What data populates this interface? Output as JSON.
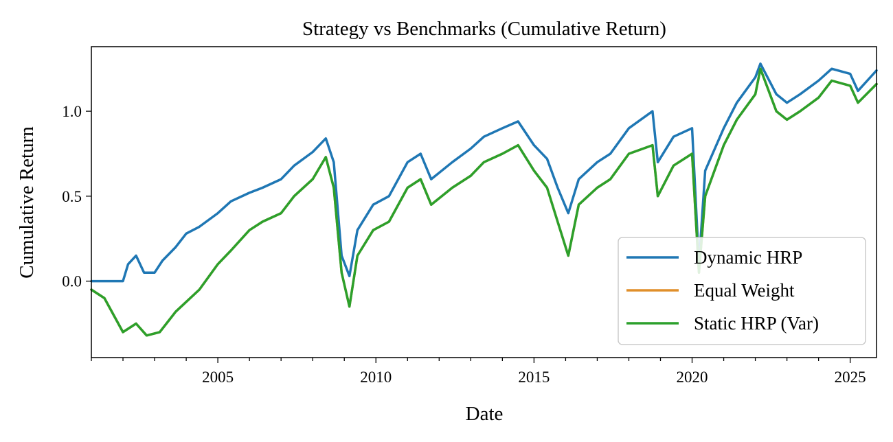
{
  "chart_data": {
    "type": "line",
    "title": "Strategy vs Benchmarks (Cumulative Return)",
    "xlabel": "Date",
    "ylabel": "Cumulative Return",
    "xlim": [
      "2001-01-01",
      "2025-11-01"
    ],
    "ylim": [
      -0.45,
      1.38
    ],
    "x_ticks": [
      "2005",
      "2010",
      "2015",
      "2020",
      "2025"
    ],
    "y_ticks": [
      "0.0",
      "0.5",
      "1.0"
    ],
    "y_tick_values": [
      0.0,
      0.5,
      1.0
    ],
    "grid": false,
    "legend_position": "lower-right",
    "series": [
      {
        "name": "Dynamic HRP",
        "color": "#1f77b4",
        "points": [
          [
            "2001-01-01",
            0.0
          ],
          [
            "2002-01-01",
            0.0
          ],
          [
            "2002-03-01",
            0.1
          ],
          [
            "2002-06-01",
            0.15
          ],
          [
            "2002-09-01",
            0.05
          ],
          [
            "2003-01-01",
            0.05
          ],
          [
            "2003-04-01",
            0.12
          ],
          [
            "2003-09-01",
            0.2
          ],
          [
            "2004-01-01",
            0.28
          ],
          [
            "2004-06-01",
            0.32
          ],
          [
            "2005-01-01",
            0.4
          ],
          [
            "2005-06-01",
            0.47
          ],
          [
            "2006-01-01",
            0.52
          ],
          [
            "2006-06-01",
            0.55
          ],
          [
            "2007-01-01",
            0.6
          ],
          [
            "2007-06-01",
            0.68
          ],
          [
            "2008-01-01",
            0.76
          ],
          [
            "2008-06-01",
            0.84
          ],
          [
            "2008-09-01",
            0.7
          ],
          [
            "2008-12-01",
            0.15
          ],
          [
            "2009-03-01",
            0.03
          ],
          [
            "2009-06-01",
            0.3
          ],
          [
            "2009-12-01",
            0.45
          ],
          [
            "2010-06-01",
            0.5
          ],
          [
            "2011-01-01",
            0.7
          ],
          [
            "2011-06-01",
            0.75
          ],
          [
            "2011-10-01",
            0.6
          ],
          [
            "2012-06-01",
            0.7
          ],
          [
            "2013-01-01",
            0.78
          ],
          [
            "2013-06-01",
            0.85
          ],
          [
            "2014-01-01",
            0.9
          ],
          [
            "2014-07-01",
            0.94
          ],
          [
            "2015-01-01",
            0.8
          ],
          [
            "2015-06-01",
            0.72
          ],
          [
            "2015-10-01",
            0.55
          ],
          [
            "2016-02-01",
            0.4
          ],
          [
            "2016-06-01",
            0.6
          ],
          [
            "2017-01-01",
            0.7
          ],
          [
            "2017-06-01",
            0.75
          ],
          [
            "2018-01-01",
            0.9
          ],
          [
            "2018-10-01",
            1.0
          ],
          [
            "2018-12-01",
            0.7
          ],
          [
            "2019-06-01",
            0.85
          ],
          [
            "2020-01-01",
            0.9
          ],
          [
            "2020-03-20",
            0.1
          ],
          [
            "2020-06-01",
            0.65
          ],
          [
            "2021-01-01",
            0.9
          ],
          [
            "2021-06-01",
            1.05
          ],
          [
            "2022-01-01",
            1.2
          ],
          [
            "2022-03-01",
            1.28
          ],
          [
            "2022-09-01",
            1.1
          ],
          [
            "2023-01-01",
            1.05
          ],
          [
            "2023-06-01",
            1.1
          ],
          [
            "2024-01-01",
            1.18
          ],
          [
            "2024-06-01",
            1.25
          ],
          [
            "2025-01-01",
            1.22
          ],
          [
            "2025-04-01",
            1.12
          ],
          [
            "2025-11-01",
            1.24
          ]
        ]
      },
      {
        "name": "Equal Weight",
        "color": "#e08f2a",
        "points": [
          [
            "2001-01-01",
            -0.05
          ],
          [
            "2001-06-01",
            -0.1
          ],
          [
            "2002-01-01",
            -0.3
          ],
          [
            "2002-06-01",
            -0.25
          ],
          [
            "2002-10-01",
            -0.32
          ],
          [
            "2003-03-01",
            -0.3
          ],
          [
            "2003-09-01",
            -0.18
          ],
          [
            "2004-06-01",
            -0.05
          ],
          [
            "2005-01-01",
            0.1
          ],
          [
            "2005-06-01",
            0.18
          ],
          [
            "2006-01-01",
            0.3
          ],
          [
            "2006-06-01",
            0.35
          ],
          [
            "2007-01-01",
            0.4
          ],
          [
            "2007-06-01",
            0.5
          ],
          [
            "2008-01-01",
            0.6
          ],
          [
            "2008-06-01",
            0.73
          ],
          [
            "2008-09-01",
            0.55
          ],
          [
            "2008-12-01",
            0.05
          ],
          [
            "2009-03-01",
            -0.15
          ],
          [
            "2009-06-01",
            0.15
          ],
          [
            "2009-12-01",
            0.3
          ],
          [
            "2010-06-01",
            0.35
          ],
          [
            "2011-01-01",
            0.55
          ],
          [
            "2011-06-01",
            0.6
          ],
          [
            "2011-10-01",
            0.45
          ],
          [
            "2012-06-01",
            0.55
          ],
          [
            "2013-01-01",
            0.62
          ],
          [
            "2013-06-01",
            0.7
          ],
          [
            "2014-01-01",
            0.75
          ],
          [
            "2014-07-01",
            0.8
          ],
          [
            "2015-01-01",
            0.65
          ],
          [
            "2015-06-01",
            0.55
          ],
          [
            "2015-10-01",
            0.35
          ],
          [
            "2016-02-01",
            0.15
          ],
          [
            "2016-06-01",
            0.45
          ],
          [
            "2017-01-01",
            0.55
          ],
          [
            "2017-06-01",
            0.6
          ],
          [
            "2018-01-01",
            0.75
          ],
          [
            "2018-10-01",
            0.8
          ],
          [
            "2018-12-01",
            0.5
          ],
          [
            "2019-06-01",
            0.68
          ],
          [
            "2020-01-01",
            0.75
          ],
          [
            "2020-03-20",
            0.05
          ],
          [
            "2020-06-01",
            0.5
          ],
          [
            "2021-01-01",
            0.8
          ],
          [
            "2021-06-01",
            0.95
          ],
          [
            "2022-01-01",
            1.1
          ],
          [
            "2022-03-01",
            1.25
          ],
          [
            "2022-09-01",
            1.0
          ],
          [
            "2023-01-01",
            0.95
          ],
          [
            "2023-06-01",
            1.0
          ],
          [
            "2024-01-01",
            1.08
          ],
          [
            "2024-06-01",
            1.18
          ],
          [
            "2025-01-01",
            1.15
          ],
          [
            "2025-04-01",
            1.05
          ],
          [
            "2025-11-01",
            1.16
          ]
        ]
      },
      {
        "name": "Static HRP (Var)",
        "color": "#2ca02c",
        "points": [
          [
            "2001-01-01",
            -0.05
          ],
          [
            "2001-06-01",
            -0.1
          ],
          [
            "2002-01-01",
            -0.3
          ],
          [
            "2002-06-01",
            -0.25
          ],
          [
            "2002-10-01",
            -0.32
          ],
          [
            "2003-03-01",
            -0.3
          ],
          [
            "2003-09-01",
            -0.18
          ],
          [
            "2004-06-01",
            -0.05
          ],
          [
            "2005-01-01",
            0.1
          ],
          [
            "2005-06-01",
            0.18
          ],
          [
            "2006-01-01",
            0.3
          ],
          [
            "2006-06-01",
            0.35
          ],
          [
            "2007-01-01",
            0.4
          ],
          [
            "2007-06-01",
            0.5
          ],
          [
            "2008-01-01",
            0.6
          ],
          [
            "2008-06-01",
            0.73
          ],
          [
            "2008-09-01",
            0.55
          ],
          [
            "2008-12-01",
            0.05
          ],
          [
            "2009-03-01",
            -0.15
          ],
          [
            "2009-06-01",
            0.15
          ],
          [
            "2009-12-01",
            0.3
          ],
          [
            "2010-06-01",
            0.35
          ],
          [
            "2011-01-01",
            0.55
          ],
          [
            "2011-06-01",
            0.6
          ],
          [
            "2011-10-01",
            0.45
          ],
          [
            "2012-06-01",
            0.55
          ],
          [
            "2013-01-01",
            0.62
          ],
          [
            "2013-06-01",
            0.7
          ],
          [
            "2014-01-01",
            0.75
          ],
          [
            "2014-07-01",
            0.8
          ],
          [
            "2015-01-01",
            0.65
          ],
          [
            "2015-06-01",
            0.55
          ],
          [
            "2015-10-01",
            0.35
          ],
          [
            "2016-02-01",
            0.15
          ],
          [
            "2016-06-01",
            0.45
          ],
          [
            "2017-01-01",
            0.55
          ],
          [
            "2017-06-01",
            0.6
          ],
          [
            "2018-01-01",
            0.75
          ],
          [
            "2018-10-01",
            0.8
          ],
          [
            "2018-12-01",
            0.5
          ],
          [
            "2019-06-01",
            0.68
          ],
          [
            "2020-01-01",
            0.75
          ],
          [
            "2020-03-20",
            0.05
          ],
          [
            "2020-06-01",
            0.5
          ],
          [
            "2021-01-01",
            0.8
          ],
          [
            "2021-06-01",
            0.95
          ],
          [
            "2022-01-01",
            1.1
          ],
          [
            "2022-03-01",
            1.25
          ],
          [
            "2022-09-01",
            1.0
          ],
          [
            "2023-01-01",
            0.95
          ],
          [
            "2023-06-01",
            1.0
          ],
          [
            "2024-01-01",
            1.08
          ],
          [
            "2024-06-01",
            1.18
          ],
          [
            "2025-01-01",
            1.15
          ],
          [
            "2025-04-01",
            1.05
          ],
          [
            "2025-11-01",
            1.16
          ]
        ]
      }
    ]
  }
}
